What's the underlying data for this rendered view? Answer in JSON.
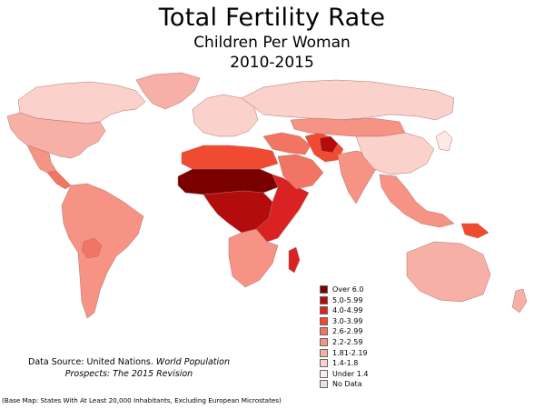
{
  "header": {
    "title": "Total Fertility Rate",
    "subtitle": "Children Per Woman",
    "period": "2010-2015"
  },
  "legend": {
    "items": [
      {
        "label": "Over 6.0",
        "color": "#7a0000"
      },
      {
        "label": "5.0-5.99",
        "color": "#b30c0c"
      },
      {
        "label": "4.0-4.99",
        "color": "#da2222"
      },
      {
        "label": "3.0-3.99",
        "color": "#f04a30"
      },
      {
        "label": "2.6-2.99",
        "color": "#f27462"
      },
      {
        "label": "2.2-2.59",
        "color": "#f69385"
      },
      {
        "label": "1.81-2.19",
        "color": "#f7b0a5"
      },
      {
        "label": "1.4-1.8",
        "color": "#fbd2cb"
      },
      {
        "label": "Under 1.4",
        "color": "#fde9e5"
      },
      {
        "label": "No Data",
        "color": "#e3e3e3"
      }
    ]
  },
  "source": {
    "prefix": "Data Source: United Nations.",
    "italic": "World Population Prospects: The 2015 Revision"
  },
  "base_note": "(Base Map: States With At Least 20,000 Inhabitants, Excluding European Microstates)",
  "regions": {
    "north_america_canada": "1.4-1.8",
    "north_america_usa": "1.81-2.19",
    "greenland": "1.81-2.19",
    "mexico": "2.2-2.59",
    "central_america": "2.6-2.99",
    "south_america": "2.2-2.59",
    "bolivia": "2.6-2.99",
    "europe": "1.4-1.8",
    "russia": "1.4-1.8",
    "north_africa": "3.0-3.99",
    "sahel": "Over 6.0",
    "central_africa": "5.0-5.99",
    "east_africa": "4.0-4.99",
    "southern_africa": "2.2-2.59",
    "madagascar": "4.0-4.99",
    "middle_east": "2.6-2.99",
    "arabia": "2.6-2.99",
    "afghanistan": "5.0-5.99",
    "pakistan_iran": "3.0-3.99",
    "india": "2.2-2.59",
    "kazakhstan_mongolia": "2.2-2.59",
    "china": "1.4-1.8",
    "japan_korea": "Under 1.4",
    "southeast_asia": "2.2-2.59",
    "png": "3.0-3.99",
    "australia": "1.81-2.19",
    "new_zealand": "1.81-2.19"
  }
}
